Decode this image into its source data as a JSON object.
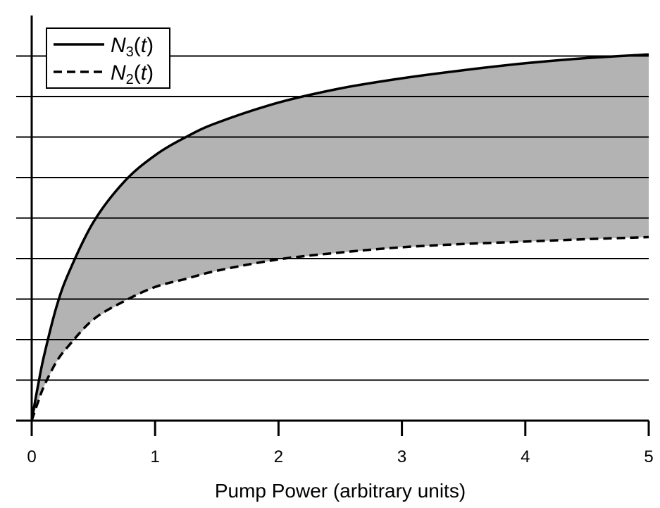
{
  "chart_data": {
    "type": "line",
    "title": "",
    "xlabel": "Pump Power (arbitrary units)",
    "ylabel": "",
    "xlim": [
      0,
      5
    ],
    "ylim": [
      0,
      9
    ],
    "x_ticks": [
      "0",
      "1",
      "2",
      "3",
      "4",
      "5"
    ],
    "y_ticks_labeled": false,
    "grid": "horizontal",
    "legend_position": "top-left",
    "fill_between_series": true,
    "fill_color": "#b3b3b3",
    "x": [
      0,
      0.05,
      0.1,
      0.2,
      0.3,
      0.5,
      0.75,
      1,
      1.25,
      1.5,
      2,
      2.5,
      3,
      3.5,
      4,
      4.5,
      5
    ],
    "series": [
      {
        "name": "N3(t)",
        "legend_main": "N",
        "legend_sub": "3",
        "legend_tail": "(t)",
        "style": "solid",
        "values": [
          0,
          0.85,
          1.6,
          2.8,
          3.65,
          4.9,
          5.9,
          6.55,
          7.0,
          7.35,
          7.85,
          8.2,
          8.45,
          8.65,
          8.82,
          8.95,
          9.04
        ]
      },
      {
        "name": "N2(t)",
        "legend_main": "N",
        "legend_sub": "2",
        "legend_tail": "(t)",
        "style": "dashed",
        "values": [
          0,
          0.45,
          0.85,
          1.45,
          1.85,
          2.5,
          2.95,
          3.3,
          3.5,
          3.7,
          3.98,
          4.15,
          4.28,
          4.36,
          4.42,
          4.48,
          4.53
        ]
      }
    ]
  }
}
